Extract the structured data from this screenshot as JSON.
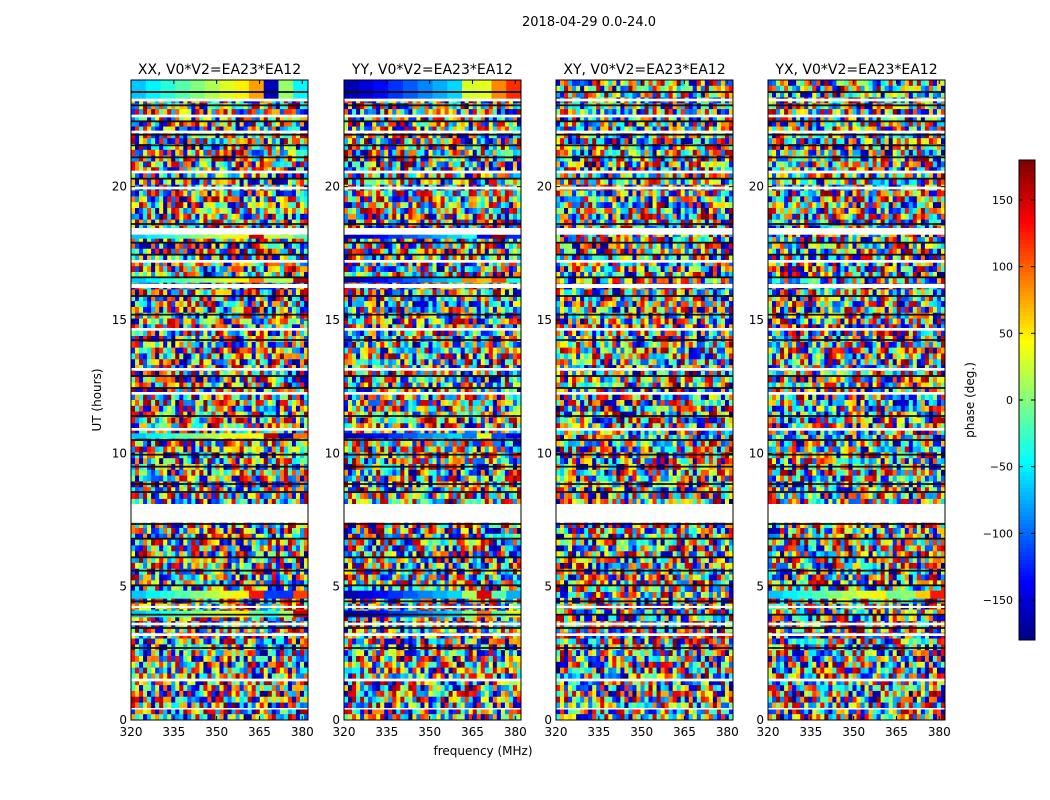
{
  "chart_data": {
    "type": "heatmap",
    "suptitle": "2018-04-29 0.0-24.0",
    "xlabel": "frequency (MHz)",
    "ylabel": "UT (hours)",
    "x_range": [
      320,
      382
    ],
    "y_range": [
      0,
      24
    ],
    "x_ticks": [
      "320",
      "335",
      "350",
      "365",
      "380"
    ],
    "y_ticks": [
      "0",
      "5",
      "10",
      "15",
      "20"
    ],
    "panels": [
      {
        "title": "XX, V0*V2=EA23*EA12",
        "polarization": "XX"
      },
      {
        "title": "YY, V0*V2=EA23*EA12",
        "polarization": "YY"
      },
      {
        "title": "XY, V0*V2=EA23*EA12",
        "polarization": "XY"
      },
      {
        "title": "YX, V0*V2=EA23*EA12",
        "polarization": "YX"
      }
    ],
    "colorbar": {
      "label": "phase (deg.)",
      "range": [
        -180,
        180
      ],
      "ticks": [
        "150",
        "100",
        "50",
        "0",
        "−50",
        "−100",
        "−150"
      ],
      "colormap": "jet"
    },
    "blank_bands_ut": [
      [
        0.4,
        0.45
      ],
      [
        1.45,
        1.55
      ],
      [
        3.15,
        3.25
      ],
      [
        3.55,
        3.65
      ],
      [
        4.2,
        4.28
      ],
      [
        7.4,
        8.1
      ],
      [
        10.85,
        10.95
      ],
      [
        12.2,
        12.3
      ],
      [
        13.1,
        13.2
      ],
      [
        14.6,
        14.7
      ],
      [
        16.2,
        16.35
      ],
      [
        17.15,
        17.25
      ],
      [
        18.2,
        18.45
      ],
      [
        19.9,
        20.0
      ],
      [
        20.5,
        20.6
      ],
      [
        22.0,
        22.1
      ],
      [
        22.6,
        22.7
      ],
      [
        23.2,
        23.3
      ]
    ],
    "dark_lines_ut": [
      2.7,
      3.45,
      3.95,
      4.45,
      5.05,
      5.6,
      6.1,
      6.8,
      7.35,
      8.55,
      8.85,
      9.5,
      9.95,
      10.5,
      11.4,
      12.45,
      12.9,
      14.25,
      15.2,
      15.9,
      16.6,
      17.45,
      17.9,
      18.6,
      20.3,
      21.1,
      21.55,
      21.95,
      22.45,
      23.05,
      23.55
    ],
    "coherent_bands_ut": [
      {
        "ut": [
          4.55,
          4.85
        ],
        "panels": [
          "XX",
          "YY",
          "YX"
        ]
      },
      {
        "ut": [
          3.85,
          4.1
        ],
        "panels": [
          "XX",
          "YY"
        ]
      },
      {
        "ut": [
          23.25,
          24.0
        ],
        "panels": [
          "XX",
          "YY"
        ]
      },
      {
        "ut": [
          16.4,
          16.6
        ],
        "panels": [
          "XX",
          "YY"
        ]
      },
      {
        "ut": [
          18.05,
          18.2
        ],
        "panels": [
          "XX",
          "YY"
        ]
      },
      {
        "ut": [
          10.55,
          10.75
        ],
        "panels": [
          "XX",
          "YY"
        ]
      }
    ]
  }
}
